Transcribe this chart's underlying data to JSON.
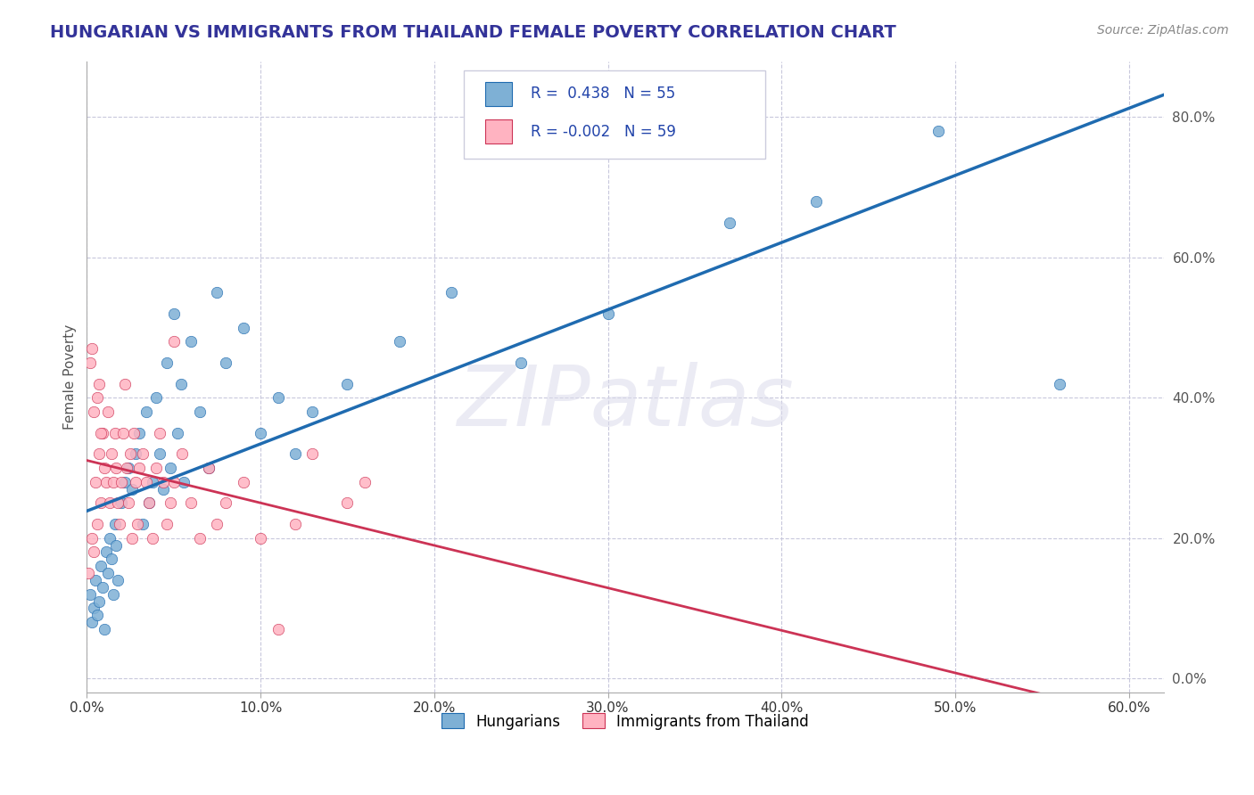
{
  "title": "HUNGARIAN VS IMMIGRANTS FROM THAILAND FEMALE POVERTY CORRELATION CHART",
  "source": "Source: ZipAtlas.com",
  "ylabel": "Female Poverty",
  "blue_R": 0.438,
  "blue_N": 55,
  "pink_R": -0.002,
  "pink_N": 59,
  "blue_color": "#7EB0D5",
  "pink_color": "#FFB3C1",
  "blue_line_color": "#1F6BB0",
  "pink_line_color": "#CC3355",
  "background_color": "#FFFFFF",
  "grid_color": "#C8C8DC",
  "blue_scatter": [
    [
      0.002,
      0.12
    ],
    [
      0.003,
      0.08
    ],
    [
      0.004,
      0.1
    ],
    [
      0.005,
      0.14
    ],
    [
      0.006,
      0.09
    ],
    [
      0.007,
      0.11
    ],
    [
      0.008,
      0.16
    ],
    [
      0.009,
      0.13
    ],
    [
      0.01,
      0.07
    ],
    [
      0.011,
      0.18
    ],
    [
      0.012,
      0.15
    ],
    [
      0.013,
      0.2
    ],
    [
      0.014,
      0.17
    ],
    [
      0.015,
      0.12
    ],
    [
      0.016,
      0.22
    ],
    [
      0.017,
      0.19
    ],
    [
      0.018,
      0.14
    ],
    [
      0.02,
      0.25
    ],
    [
      0.022,
      0.28
    ],
    [
      0.024,
      0.3
    ],
    [
      0.026,
      0.27
    ],
    [
      0.028,
      0.32
    ],
    [
      0.03,
      0.35
    ],
    [
      0.032,
      0.22
    ],
    [
      0.034,
      0.38
    ],
    [
      0.036,
      0.25
    ],
    [
      0.038,
      0.28
    ],
    [
      0.04,
      0.4
    ],
    [
      0.042,
      0.32
    ],
    [
      0.044,
      0.27
    ],
    [
      0.046,
      0.45
    ],
    [
      0.048,
      0.3
    ],
    [
      0.05,
      0.52
    ],
    [
      0.052,
      0.35
    ],
    [
      0.054,
      0.42
    ],
    [
      0.056,
      0.28
    ],
    [
      0.06,
      0.48
    ],
    [
      0.065,
      0.38
    ],
    [
      0.07,
      0.3
    ],
    [
      0.075,
      0.55
    ],
    [
      0.08,
      0.45
    ],
    [
      0.09,
      0.5
    ],
    [
      0.1,
      0.35
    ],
    [
      0.11,
      0.4
    ],
    [
      0.12,
      0.32
    ],
    [
      0.13,
      0.38
    ],
    [
      0.15,
      0.42
    ],
    [
      0.18,
      0.48
    ],
    [
      0.21,
      0.55
    ],
    [
      0.25,
      0.45
    ],
    [
      0.3,
      0.52
    ],
    [
      0.37,
      0.65
    ],
    [
      0.42,
      0.68
    ],
    [
      0.49,
      0.78
    ],
    [
      0.56,
      0.42
    ]
  ],
  "pink_scatter": [
    [
      0.001,
      0.15
    ],
    [
      0.002,
      0.45
    ],
    [
      0.003,
      0.2
    ],
    [
      0.004,
      0.18
    ],
    [
      0.005,
      0.28
    ],
    [
      0.006,
      0.22
    ],
    [
      0.007,
      0.32
    ],
    [
      0.008,
      0.25
    ],
    [
      0.009,
      0.35
    ],
    [
      0.01,
      0.3
    ],
    [
      0.011,
      0.28
    ],
    [
      0.012,
      0.38
    ],
    [
      0.013,
      0.25
    ],
    [
      0.014,
      0.32
    ],
    [
      0.015,
      0.28
    ],
    [
      0.016,
      0.35
    ],
    [
      0.017,
      0.3
    ],
    [
      0.018,
      0.25
    ],
    [
      0.019,
      0.22
    ],
    [
      0.02,
      0.28
    ],
    [
      0.021,
      0.35
    ],
    [
      0.022,
      0.42
    ],
    [
      0.023,
      0.3
    ],
    [
      0.024,
      0.25
    ],
    [
      0.025,
      0.32
    ],
    [
      0.026,
      0.2
    ],
    [
      0.027,
      0.35
    ],
    [
      0.028,
      0.28
    ],
    [
      0.029,
      0.22
    ],
    [
      0.03,
      0.3
    ],
    [
      0.032,
      0.32
    ],
    [
      0.034,
      0.28
    ],
    [
      0.036,
      0.25
    ],
    [
      0.038,
      0.2
    ],
    [
      0.04,
      0.3
    ],
    [
      0.042,
      0.35
    ],
    [
      0.044,
      0.28
    ],
    [
      0.046,
      0.22
    ],
    [
      0.048,
      0.25
    ],
    [
      0.05,
      0.28
    ],
    [
      0.055,
      0.32
    ],
    [
      0.06,
      0.25
    ],
    [
      0.065,
      0.2
    ],
    [
      0.07,
      0.3
    ],
    [
      0.075,
      0.22
    ],
    [
      0.08,
      0.25
    ],
    [
      0.09,
      0.28
    ],
    [
      0.1,
      0.2
    ],
    [
      0.11,
      0.07
    ],
    [
      0.12,
      0.22
    ],
    [
      0.13,
      0.32
    ],
    [
      0.15,
      0.25
    ],
    [
      0.16,
      0.28
    ],
    [
      0.05,
      0.48
    ],
    [
      0.003,
      0.47
    ],
    [
      0.004,
      0.38
    ],
    [
      0.006,
      0.4
    ],
    [
      0.007,
      0.42
    ],
    [
      0.008,
      0.35
    ]
  ],
  "xlim": [
    0.0,
    0.62
  ],
  "ylim": [
    -0.02,
    0.88
  ],
  "xticks": [
    0.0,
    0.1,
    0.2,
    0.3,
    0.4,
    0.5,
    0.6
  ],
  "yticks": [
    0.0,
    0.2,
    0.4,
    0.6,
    0.8
  ],
  "ytick_labels": [
    "0.0%",
    "20.0%",
    "40.0%",
    "60.0%",
    "80.0%"
  ]
}
